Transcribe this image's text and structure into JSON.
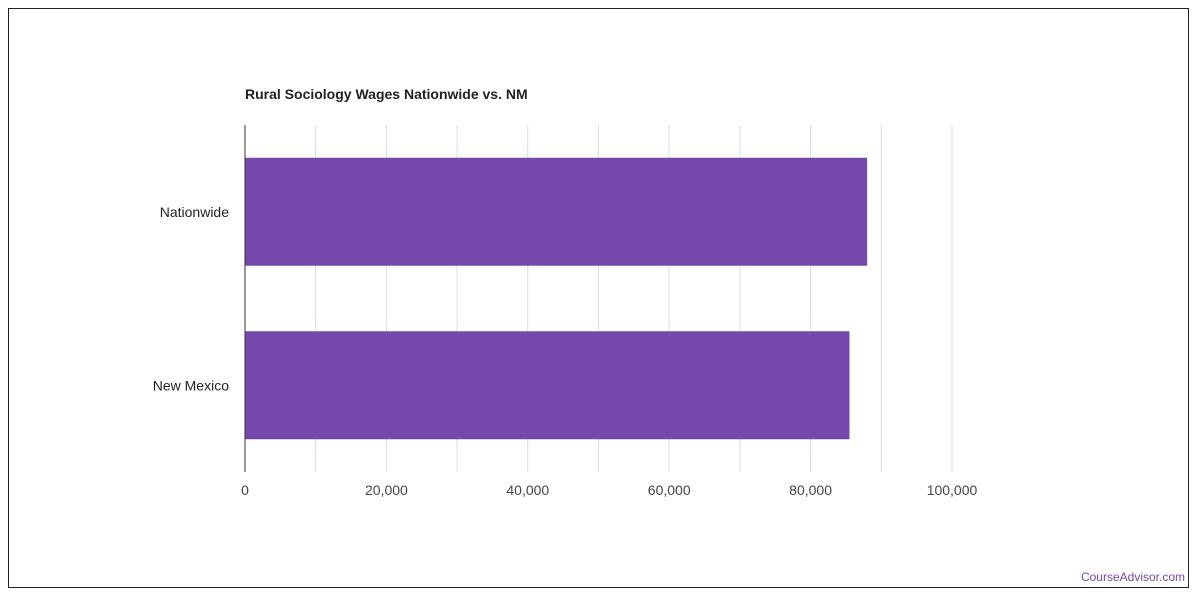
{
  "chart_data": {
    "type": "bar",
    "orientation": "horizontal",
    "title": "Rural Sociology Wages Nationwide vs. NM",
    "categories": [
      "Nationwide",
      "New Mexico"
    ],
    "values": [
      88000,
      85500
    ],
    "xlim": [
      0,
      100000
    ],
    "x_ticks": [
      0,
      20000,
      40000,
      60000,
      80000,
      100000
    ],
    "x_tick_labels": [
      "0",
      "20,000",
      "40,000",
      "60,000",
      "80,000",
      "100,000"
    ],
    "xlabel": "",
    "ylabel": "",
    "grid": true,
    "bar_color": "#7449ab"
  },
  "watermark": "CourseAdvisor.com"
}
